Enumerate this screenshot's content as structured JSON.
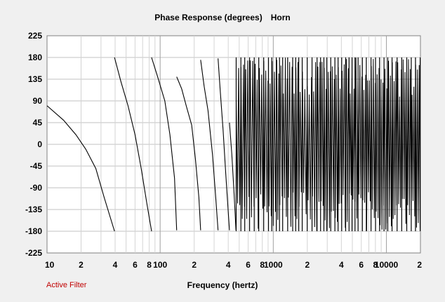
{
  "colors": {
    "background": "#f0f0f0",
    "plot_background": "#ffffff",
    "grid": "#c0c0c0",
    "curve": "#000000",
    "status_text": "#c00000"
  },
  "status": {
    "active_filter_label": "Active Filter"
  },
  "chart_data": {
    "type": "line",
    "title": "Phase Response (degrees)",
    "subtitle": "Horn",
    "xlabel": "Frequency (hertz)",
    "ylabel": "",
    "x_scale": "log",
    "xlim": [
      10,
      20000
    ],
    "ylim": [
      -225,
      225
    ],
    "grid": true,
    "yticks": [
      225,
      180,
      135,
      90,
      45,
      0,
      -45,
      -90,
      -135,
      -180,
      -225
    ],
    "xticks": [
      {
        "value": 10,
        "label": "10"
      },
      {
        "value": 20,
        "label": "2"
      },
      {
        "value": 40,
        "label": "4"
      },
      {
        "value": 60,
        "label": "6"
      },
      {
        "value": 80,
        "label": "8"
      },
      {
        "value": 100,
        "label": "100"
      },
      {
        "value": 200,
        "label": "2"
      },
      {
        "value": 400,
        "label": "4"
      },
      {
        "value": 600,
        "label": "6"
      },
      {
        "value": 800,
        "label": "8"
      },
      {
        "value": 1000,
        "label": "1000"
      },
      {
        "value": 2000,
        "label": "2"
      },
      {
        "value": 4000,
        "label": "4"
      },
      {
        "value": 6000,
        "label": "6"
      },
      {
        "value": 8000,
        "label": "8"
      },
      {
        "value": 10000,
        "label": "10000"
      },
      {
        "value": 20000,
        "label": "2"
      }
    ],
    "series": [
      {
        "segments": [
          [
            [
              10,
              80
            ],
            [
              14,
              50
            ],
            [
              18,
              20
            ],
            [
              22,
              -10
            ],
            [
              27,
              -50
            ],
            [
              32,
              -110
            ],
            [
              39.5,
              -180
            ]
          ],
          [
            [
              39.5,
              180
            ],
            [
              45,
              130
            ],
            [
              52,
              80
            ],
            [
              60,
              20
            ],
            [
              68,
              -50
            ],
            [
              76,
              -120
            ],
            [
              84,
              -180
            ]
          ],
          [
            [
              84,
              180
            ],
            [
              95,
              140
            ],
            [
              110,
              90
            ],
            [
              122,
              20
            ],
            [
              134,
              -70
            ],
            [
              140,
              -178
            ]
          ],
          [
            [
              140,
              140
            ],
            [
              155,
              115
            ],
            [
              170,
              80
            ],
            [
              190,
              40
            ],
            [
              205,
              -30
            ],
            [
              220,
              -110
            ],
            [
              228,
              -178
            ]
          ],
          [
            [
              228,
              175
            ],
            [
              245,
              120
            ],
            [
              265,
              70
            ],
            [
              290,
              -20
            ],
            [
              310,
              -110
            ],
            [
              325,
              -178
            ]
          ],
          [
            [
              325,
              178
            ],
            [
              340,
              110
            ],
            [
              360,
              30
            ],
            [
              380,
              -60
            ],
            [
              400,
              -140
            ],
            [
              410,
              -178
            ]
          ],
          [
            [
              410,
              45
            ],
            [
              430,
              -20
            ],
            [
              450,
              -100
            ],
            [
              468,
              -178
            ]
          ]
        ]
      }
    ],
    "dense_region": {
      "from_hz": 470,
      "to_hz": 20000,
      "min": -180,
      "max": 180
    }
  }
}
